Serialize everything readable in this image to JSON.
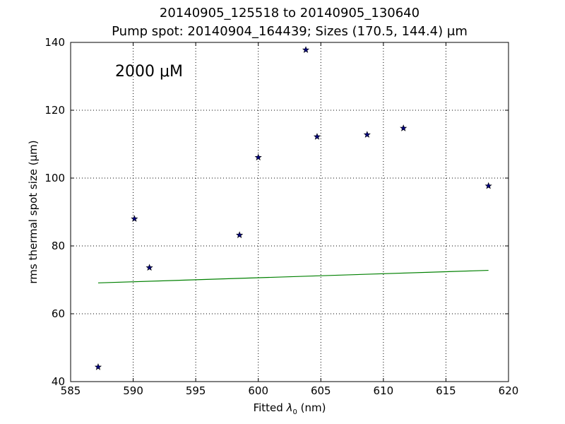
{
  "chart_data": {
    "type": "scatter",
    "title_line1": "20140905_125518 to 20140905_130640",
    "title_line2": "Pump spot: 20140904_164439; Sizes (170.5, 144.4) μm",
    "xlabel_prefix": "Fitted ",
    "xlabel_symbol": "λ",
    "xlabel_subscript": "0",
    "xlabel_suffix": " (nm)",
    "ylabel": "rms thermal spot size (μm)",
    "annotation": "2000 μM",
    "xlim": [
      585,
      620
    ],
    "ylim": [
      40,
      140
    ],
    "xticks": [
      585,
      590,
      595,
      600,
      605,
      610,
      615,
      620
    ],
    "yticks": [
      40,
      60,
      80,
      100,
      120,
      140
    ],
    "grid": true,
    "points": {
      "marker": "star",
      "color": "#000080",
      "x": [
        587.2,
        590.1,
        591.3,
        598.5,
        600.0,
        603.8,
        604.7,
        608.7,
        611.6,
        618.4
      ],
      "y": [
        44.3,
        88.0,
        73.6,
        83.2,
        106.1,
        137.8,
        112.2,
        112.8,
        114.7,
        97.7
      ]
    },
    "fit_line": {
      "color": "#008000",
      "x": [
        587.2,
        618.4
      ],
      "y": [
        69.1,
        72.8
      ]
    }
  }
}
